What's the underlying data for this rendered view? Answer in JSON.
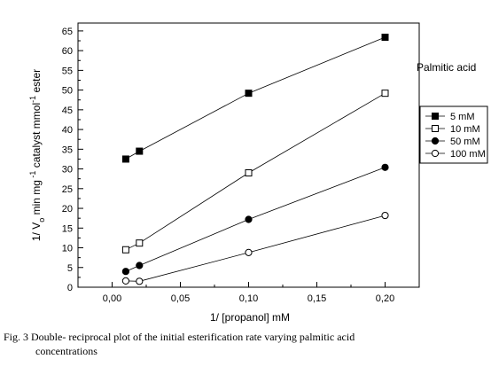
{
  "caption": {
    "line1": "Fig. 3 Double- reciprocal plot of the initial esterification rate varying palmitic acid",
    "line2": "concentrations"
  },
  "chart_data": {
    "type": "line",
    "xlabel": "1/ [propanol] mM",
    "ylabel_parts": {
      "a": "1/ V",
      "a_sub": "o",
      "b": " min mg",
      "b_sup": " -1",
      "c": " catalyst mmol",
      "c_sup": "-1",
      "d": " ester"
    },
    "xlim": [
      -0.025,
      0.225
    ],
    "ylim": [
      0,
      67
    ],
    "x_ticks": [
      0.0,
      0.05,
      0.1,
      0.15,
      0.2
    ],
    "x_tick_labels": [
      "0,00",
      "0,05",
      "0,10",
      "0,15",
      "0,20"
    ],
    "y_ticks": [
      0,
      5,
      10,
      15,
      20,
      25,
      30,
      35,
      40,
      45,
      50,
      55,
      60,
      65
    ],
    "y_tick_labels": [
      "0",
      "5",
      "10",
      "15",
      "20",
      "25",
      "30",
      "35",
      "40",
      "45",
      "50",
      "55",
      "60",
      "65"
    ],
    "legend": {
      "title": "Palmitic acid",
      "placement": "right"
    },
    "series": [
      {
        "name": "5 mM",
        "marker": "filled-square",
        "x": [
          0.01,
          0.02,
          0.1,
          0.2
        ],
        "values": [
          32.5,
          34.5,
          49.2,
          63.4
        ]
      },
      {
        "name": "10 mM",
        "marker": "open-square",
        "x": [
          0.01,
          0.02,
          0.1,
          0.2
        ],
        "values": [
          9.5,
          11.2,
          29.0,
          49.2
        ]
      },
      {
        "name": "50 mM",
        "marker": "filled-circle",
        "x": [
          0.01,
          0.02,
          0.1,
          0.2
        ],
        "values": [
          4.0,
          5.5,
          17.2,
          30.4
        ]
      },
      {
        "name": "100 mM",
        "marker": "open-circle",
        "x": [
          0.01,
          0.02,
          0.1,
          0.2
        ],
        "values": [
          1.6,
          1.5,
          8.8,
          18.2
        ]
      }
    ]
  }
}
